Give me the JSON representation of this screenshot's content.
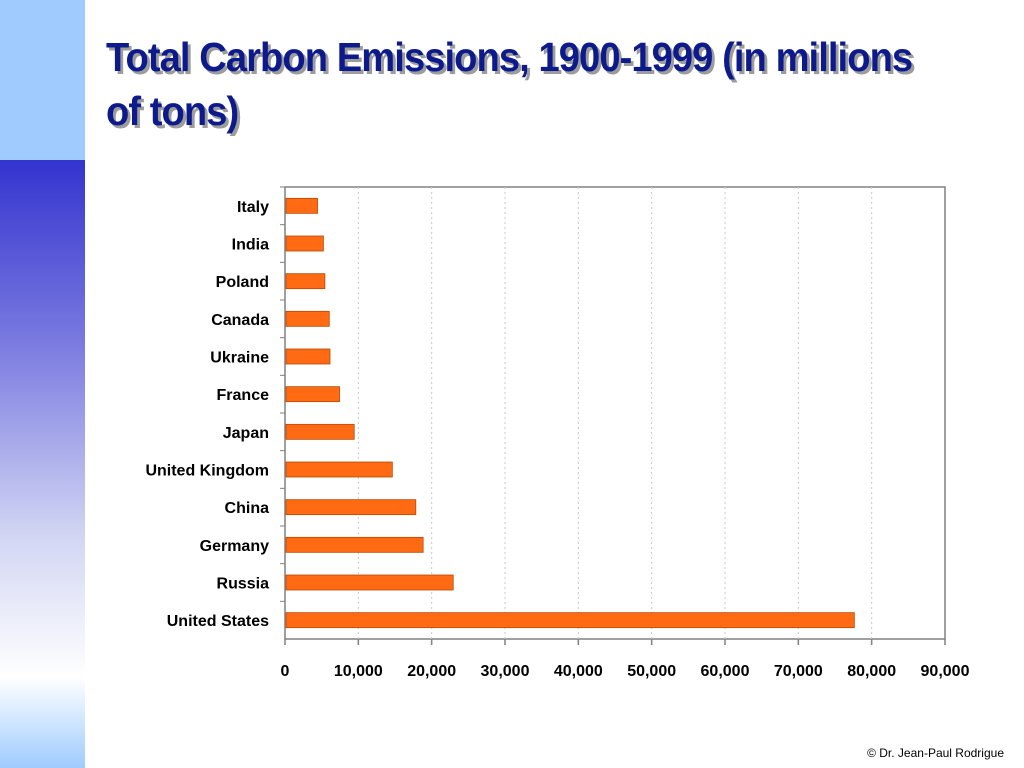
{
  "slide": {
    "title": "Total Carbon Emissions, 1900-1999 (in millions of tons)",
    "copyright": "© Dr. Jean-Paul Rodrigue"
  },
  "colors": {
    "bar_fill": "#ff6a13",
    "bar_stroke": "#b84a00",
    "title_text": "#0d1a8c",
    "accent_top": "#9fcbff",
    "accent_gradient_start": "#3434cf"
  },
  "chart_data": {
    "type": "bar",
    "orientation": "horizontal",
    "title": "",
    "xlabel": "",
    "ylabel": "",
    "categories": [
      "Italy",
      "India",
      "Poland",
      "Canada",
      "Ukraine",
      "France",
      "Japan",
      "United Kingdom",
      "China",
      "Germany",
      "Russia",
      "United States"
    ],
    "values": [
      4300,
      5100,
      5300,
      5900,
      6000,
      7300,
      9300,
      14500,
      17700,
      18700,
      22800,
      77500
    ],
    "xlim": [
      0,
      90000
    ],
    "xticks": [
      0,
      10000,
      20000,
      30000,
      40000,
      50000,
      60000,
      70000,
      80000,
      90000
    ],
    "xtick_labels": [
      "0",
      "10,000",
      "20,000",
      "30,000",
      "40,000",
      "50,000",
      "60,000",
      "70,000",
      "80,000",
      "90,000"
    ],
    "grid": "vertical dotted",
    "legend": "none"
  }
}
